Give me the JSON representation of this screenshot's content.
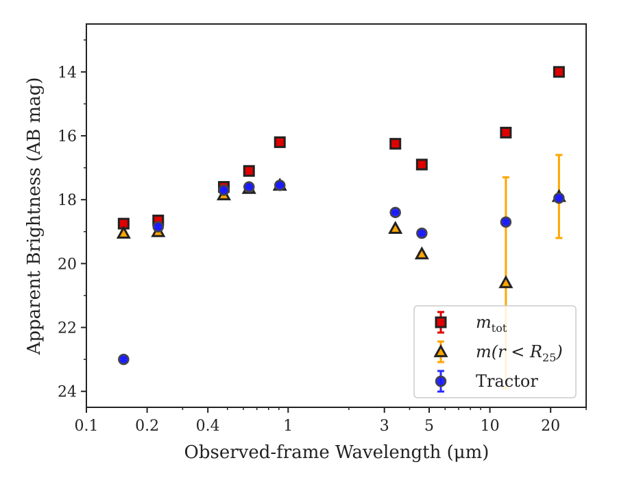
{
  "chart_data": {
    "type": "scatter",
    "xlabel": "Observed-frame Wavelength (μm)",
    "ylabel": "Apparent Brightness (AB mag)",
    "xscale": "log",
    "xlim": [
      0.1,
      30
    ],
    "ylim": [
      24.5,
      12.5
    ],
    "y_inverted": true,
    "grid": false,
    "legend_position": "lower-right",
    "xticks": [
      {
        "value": 0.1,
        "label": "0.1"
      },
      {
        "value": 0.2,
        "label": "0.2"
      },
      {
        "value": 0.4,
        "label": "0.4"
      },
      {
        "value": 1,
        "label": "1"
      },
      {
        "value": 3,
        "label": "3"
      },
      {
        "value": 5,
        "label": "5"
      },
      {
        "value": 10,
        "label": "10"
      },
      {
        "value": 20,
        "label": "20"
      }
    ],
    "yticks": [
      {
        "value": 14,
        "label": "14"
      },
      {
        "value": 16,
        "label": "16"
      },
      {
        "value": 18,
        "label": "18"
      },
      {
        "value": 20,
        "label": "20"
      },
      {
        "value": 22,
        "label": "22"
      },
      {
        "value": 24,
        "label": "24"
      }
    ],
    "series": [
      {
        "name": "m_tot",
        "legend_main": "m",
        "legend_sub": "tot",
        "marker": "square",
        "color": "#e00000",
        "errcolor": "#e00000",
        "points": [
          {
            "x": 0.153,
            "y": 18.75,
            "err": 0.05
          },
          {
            "x": 0.227,
            "y": 18.65,
            "err": 0.05
          },
          {
            "x": 0.48,
            "y": 17.6,
            "err": 0.03
          },
          {
            "x": 0.64,
            "y": 17.1,
            "err": 0.03
          },
          {
            "x": 0.91,
            "y": 16.2,
            "err": 0.03
          },
          {
            "x": 3.4,
            "y": 16.25,
            "err": 0.03
          },
          {
            "x": 4.6,
            "y": 16.9,
            "err": 0.03
          },
          {
            "x": 12.0,
            "y": 15.9,
            "err": 0.03
          },
          {
            "x": 22.0,
            "y": 14.0,
            "err": 0.03
          }
        ]
      },
      {
        "name": "m(r < R25)",
        "legend_main": "m(r < R",
        "legend_sub": "25",
        "legend_tail": ")",
        "marker": "triangle",
        "color": "#ffa500",
        "errcolor": "#ffa500",
        "points": [
          {
            "x": 0.153,
            "y": 19.05,
            "err": 0.05
          },
          {
            "x": 0.227,
            "y": 19.0,
            "err": 0.05
          },
          {
            "x": 0.48,
            "y": 17.85,
            "err": 0.03
          },
          {
            "x": 0.64,
            "y": 17.65,
            "err": 0.03
          },
          {
            "x": 0.91,
            "y": 17.55,
            "err": 0.03
          },
          {
            "x": 3.4,
            "y": 18.9,
            "err": 0.03
          },
          {
            "x": 4.6,
            "y": 19.7,
            "err": 0.05
          },
          {
            "x": 12.0,
            "y": 20.6,
            "err": 3.3
          },
          {
            "x": 22.0,
            "y": 17.9,
            "err": 1.3
          }
        ]
      },
      {
        "name": "Tractor",
        "legend_main": "Tractor",
        "marker": "circle",
        "color": "#1a1aff",
        "errcolor": "#2a2aff",
        "points": [
          {
            "x": 0.153,
            "y": 23.0,
            "err": 0.05
          },
          {
            "x": 0.227,
            "y": 18.85,
            "err": 0.05
          },
          {
            "x": 0.48,
            "y": 17.7,
            "err": 0.03
          },
          {
            "x": 0.64,
            "y": 17.6,
            "err": 0.03
          },
          {
            "x": 0.91,
            "y": 17.55,
            "err": 0.03
          },
          {
            "x": 3.4,
            "y": 18.4,
            "err": 0.03
          },
          {
            "x": 4.6,
            "y": 19.05,
            "err": 0.05
          },
          {
            "x": 12.0,
            "y": 18.7,
            "err": 0.05
          },
          {
            "x": 22.0,
            "y": 17.95,
            "err": 0.05
          }
        ]
      }
    ]
  }
}
